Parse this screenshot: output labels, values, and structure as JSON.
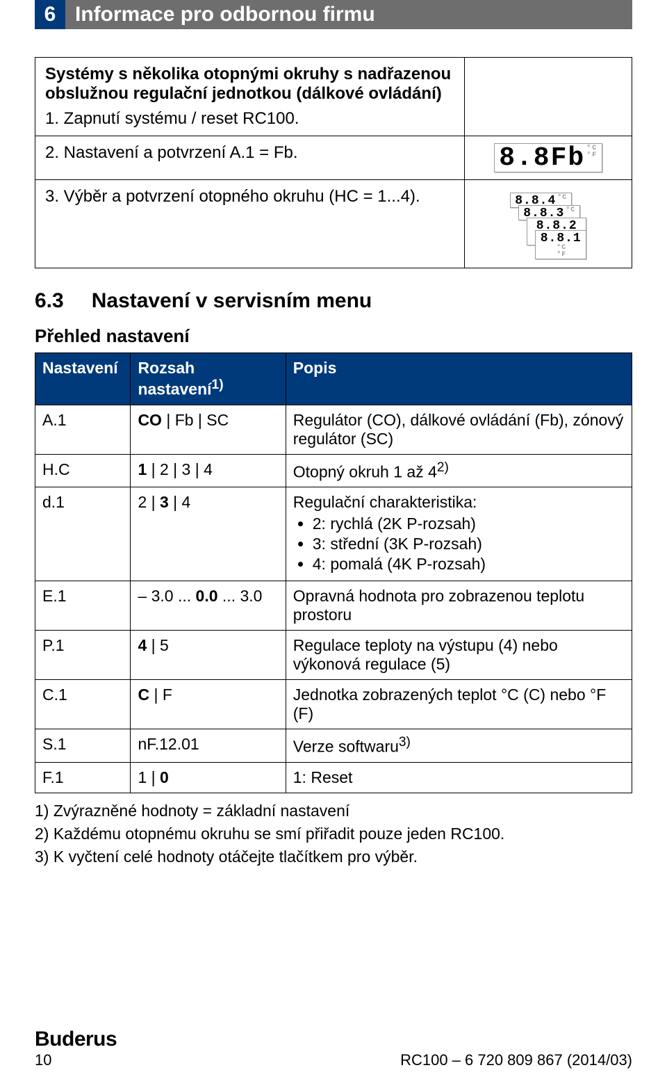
{
  "header": {
    "page_badge": "6",
    "chapter_title": "Informace pro odbornou firmu"
  },
  "note_box": {
    "title": "Systémy s několika otopnými okruhy s nadřazenou obslužnou regulační jednotkou (dálkové ovládání)",
    "steps": [
      "1. Zapnutí systému / reset RC100.",
      "2. Nastavení a potvrzení A.1 = Fb.",
      "3. Výběr a potvrzení otopného okruhu (HC = 1...4)."
    ],
    "lcd_big": "8.8Fb",
    "lcd_stack": [
      "8.8.4",
      "8.8.3",
      "8.8.2",
      "8.8.1"
    ]
  },
  "section": {
    "number": "6.3",
    "title": "Nastavení v servisním menu",
    "subhead": "Přehled nastavení"
  },
  "table": {
    "headers": [
      "Nastavení",
      "Rozsah nastavení",
      "Popis"
    ],
    "header_sup": "1)",
    "rows": [
      {
        "c0": "A.1",
        "c1": "CO | Fb | SC",
        "c1_bold_idx": 0,
        "c2_text": "Regulátor (CO), dálkové ovládání (Fb), zónový regulátor (SC)"
      },
      {
        "c0": "H.C",
        "c1": "1 | 2 | 3 | 4",
        "c1_bold_idx": 0,
        "c2_text": "Otopný okruh 1 až 4",
        "c2_sup": "2)"
      },
      {
        "c0": "d.1",
        "c1": "2 | 3 | 4",
        "c1_bold_idx": 1,
        "c2_text": "Regulační charakteristika:",
        "c2_list": [
          "2: rychlá (2K P-rozsah)",
          "3: střední (3K P-rozsah)",
          "4: pomalá (4K P-rozsah)"
        ]
      },
      {
        "c0": "E.1",
        "c1": " – 3.0 ... 0.0 ... 3.0",
        "c1_bold_run": "0.0",
        "c2_text": "Opravná hodnota pro zobrazenou teplotu prostoru"
      },
      {
        "c0": "P.1",
        "c1": "4 | 5",
        "c1_bold_idx": 0,
        "c2_text": "Regulace teploty na výstupu (4) nebo výkonová regulace (5)"
      },
      {
        "c0": "C.1",
        "c1": "C | F",
        "c1_bold_idx": 0,
        "c2_text": "Jednotka zobrazených teplot °C (C) nebo °F (F)"
      },
      {
        "c0": "S.1",
        "c1": "nF.12.01",
        "c2_text": "Verze softwaru",
        "c2_sup": "3)"
      },
      {
        "c0": "F.1",
        "c1": "1 | 0",
        "c1_bold_idx": 1,
        "c2_text": "1: Reset"
      }
    ],
    "footnotes": [
      "1) Zvýrazněné hodnoty = základní nastavení",
      "2) Každému otopnému okruhu se smí přiřadit pouze jeden RC100.",
      "3) K vyčtení celé hodnoty otáčejte tlačítkem pro výběr."
    ]
  },
  "footer": {
    "brand": "Buderus",
    "page_number": "10",
    "doc_id": "RC100 – 6 720 809 867 (2014/03)"
  },
  "colors": {
    "brand_blue": "#003a7a",
    "header_gray": "#6e6e6e",
    "text": "#000000",
    "bg": "#ffffff"
  }
}
